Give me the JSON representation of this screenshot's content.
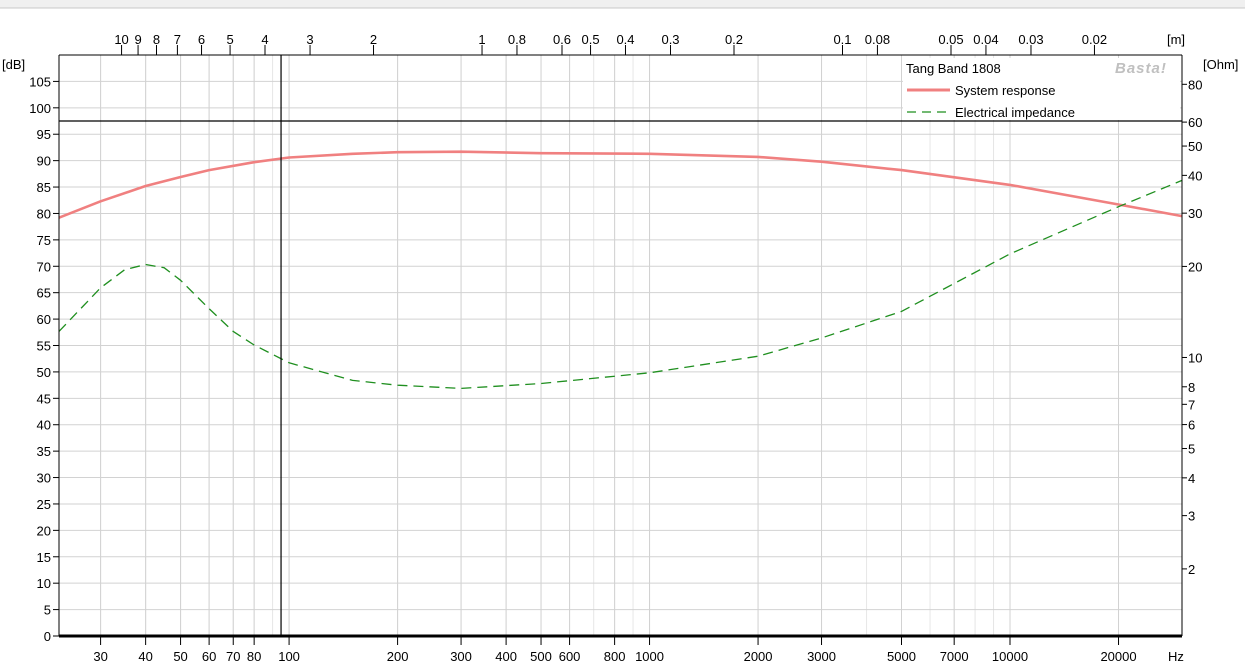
{
  "chart_data": {
    "type": "line",
    "title": "",
    "x_scale": "log",
    "x_unit": "Hz",
    "xlim": [
      23,
      30000
    ],
    "x_ticks": [
      30,
      40,
      50,
      60,
      70,
      80,
      100,
      200,
      300,
      400,
      500,
      600,
      800,
      1000,
      2000,
      3000,
      5000,
      7000,
      10000,
      20000
    ],
    "x_tick_labels": [
      "30",
      "40",
      "50",
      "60",
      "70",
      "80",
      "100",
      "200",
      "300",
      "400",
      "500",
      "600",
      "800",
      "1000",
      "2000",
      "3000",
      "5000",
      "7000",
      "10000",
      "20000"
    ],
    "top_axis": {
      "unit": "[m]",
      "ticks": [
        10,
        9,
        8,
        7,
        6,
        5,
        4,
        3,
        2,
        1,
        0.8,
        0.6,
        0.5,
        0.4,
        0.3,
        0.2,
        0.1,
        0.08,
        0.05,
        0.04,
        0.03,
        0.02
      ],
      "tick_labels": [
        "10",
        "9",
        "8",
        "7",
        "6",
        "5",
        "4",
        "3",
        "2",
        "1",
        "0.8",
        "0.6",
        "0.5",
        "0.4",
        "0.3",
        "0.2",
        "0.1",
        "0.08",
        "0.05",
        "0.04",
        "0.03",
        "0.02"
      ]
    },
    "y_left": {
      "unit": "[dB]",
      "ylim": [
        0,
        110
      ],
      "ticks": [
        0,
        5,
        10,
        15,
        20,
        25,
        30,
        35,
        40,
        45,
        50,
        55,
        60,
        65,
        70,
        75,
        80,
        85,
        90,
        95,
        100,
        105
      ],
      "tick_labels": [
        "0",
        "5",
        "10",
        "15",
        "20",
        "25",
        "30",
        "35",
        "40",
        "45",
        "50",
        "55",
        "60",
        "65",
        "70",
        "75",
        "80",
        "85",
        "90",
        "95",
        "100",
        "105"
      ]
    },
    "y_right": {
      "unit": "[Ohm]",
      "scale": "log",
      "ylim": [
        1.2,
        100
      ],
      "ticks": [
        2,
        3,
        4,
        5,
        6,
        7,
        8,
        10,
        20,
        30,
        40,
        50,
        60,
        80
      ],
      "tick_labels": [
        "2",
        "3",
        "4",
        "5",
        "6",
        "7",
        "8",
        "10",
        "20",
        "30",
        "40",
        "50",
        "60",
        "80"
      ]
    },
    "cursor": {
      "x_hz": 95,
      "y_db": 97.5
    },
    "legend": {
      "position": "top-right",
      "title": "Tang Band 1808",
      "watermark": "Basta!"
    },
    "grid": true,
    "series": [
      {
        "name": "System response",
        "axis": "left",
        "style": "solid",
        "color": "#f08080",
        "x": [
          23,
          30,
          40,
          50,
          60,
          80,
          100,
          150,
          200,
          300,
          500,
          1000,
          2000,
          3000,
          5000,
          10000,
          20000,
          30000
        ],
        "values": [
          79.2,
          82.3,
          85.2,
          86.9,
          88.2,
          89.7,
          90.6,
          91.3,
          91.6,
          91.7,
          91.4,
          91.3,
          90.7,
          89.8,
          88.2,
          85.4,
          81.7,
          79.5
        ]
      },
      {
        "name": "Electrical impedance",
        "axis": "right",
        "style": "dashed",
        "color": "#1f8f1f",
        "x": [
          23,
          30,
          35,
          40,
          45,
          50,
          60,
          70,
          80,
          100,
          150,
          200,
          300,
          500,
          1000,
          2000,
          3000,
          5000,
          10000,
          20000,
          30000
        ],
        "values": [
          12.2,
          17.0,
          19.5,
          20.3,
          19.8,
          18.0,
          14.5,
          12.2,
          11.0,
          9.6,
          8.4,
          8.1,
          7.9,
          8.2,
          8.9,
          10.1,
          11.6,
          14.2,
          22.0,
          31.5,
          38.5
        ]
      }
    ]
  }
}
